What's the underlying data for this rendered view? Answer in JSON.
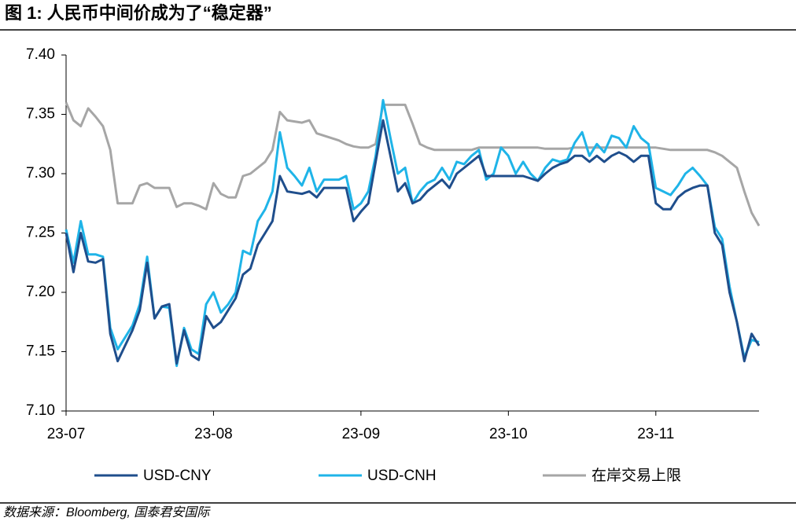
{
  "chart_data": {
    "type": "line",
    "title": "图 1:  人民币中间价成为了“稳定器”",
    "source": "数据来源：Bloomberg, 国泰君安国际",
    "categories": [
      "23-07",
      null,
      null,
      null,
      null,
      null,
      null,
      null,
      null,
      null,
      null,
      null,
      null,
      null,
      null,
      null,
      null,
      null,
      null,
      null,
      "23-08",
      null,
      null,
      null,
      null,
      null,
      null,
      null,
      null,
      null,
      null,
      null,
      null,
      null,
      null,
      null,
      null,
      null,
      null,
      null,
      "23-09",
      null,
      null,
      null,
      null,
      null,
      null,
      null,
      null,
      null,
      null,
      null,
      null,
      null,
      null,
      null,
      null,
      null,
      null,
      null,
      "23-10",
      null,
      null,
      null,
      null,
      null,
      null,
      null,
      null,
      null,
      null,
      null,
      null,
      null,
      null,
      null,
      null,
      null,
      null,
      null,
      "23-11",
      null,
      null,
      null,
      null,
      null,
      null,
      null,
      null,
      null,
      null,
      null,
      null,
      null,
      null
    ],
    "ylim": [
      7.1,
      7.4
    ],
    "yticks": [
      {
        "value": 7.1,
        "label": "7.10"
      },
      7.15,
      {
        "value": 7.2,
        "label": "7.20"
      },
      7.25,
      {
        "value": 7.3,
        "label": "7.30"
      },
      7.35,
      {
        "value": 7.4,
        "label": "7.40"
      }
    ],
    "grid": false,
    "legend": "bottom",
    "series": [
      {
        "name": "USD-CNY",
        "color": "#1f4e8c",
        "values": [
          7.25,
          7.217,
          7.25,
          7.226,
          7.225,
          7.228,
          7.165,
          7.142,
          7.155,
          7.168,
          7.185,
          7.225,
          7.178,
          7.188,
          7.19,
          7.14,
          7.168,
          7.147,
          7.143,
          7.18,
          7.17,
          7.175,
          7.185,
          7.195,
          7.215,
          7.22,
          7.24,
          7.25,
          7.26,
          7.298,
          7.285,
          7.284,
          7.283,
          7.285,
          7.28,
          7.288,
          7.288,
          7.288,
          7.288,
          7.26,
          7.268,
          7.275,
          7.31,
          7.345,
          7.315,
          7.285,
          7.292,
          7.275,
          7.278,
          7.285,
          7.29,
          7.295,
          7.288,
          7.3,
          7.305,
          7.31,
          7.315,
          7.298,
          7.298,
          7.298,
          7.298,
          7.298,
          7.298,
          7.296,
          7.294,
          7.3,
          7.305,
          7.308,
          7.31,
          7.315,
          7.315,
          7.31,
          7.315,
          7.31,
          7.315,
          7.318,
          7.315,
          7.31,
          7.315,
          7.315,
          7.275,
          7.27,
          7.27,
          7.28,
          7.285,
          7.288,
          7.29,
          7.29,
          7.25,
          7.24,
          7.2,
          7.175,
          7.142,
          7.165,
          7.155
        ]
      },
      {
        "name": "USD-CNH",
        "color": "#1fb4e8",
        "values": [
          7.253,
          7.225,
          7.26,
          7.232,
          7.232,
          7.23,
          7.17,
          7.152,
          7.162,
          7.172,
          7.19,
          7.23,
          7.178,
          7.188,
          7.187,
          7.138,
          7.17,
          7.152,
          7.148,
          7.19,
          7.2,
          7.183,
          7.19,
          7.2,
          7.235,
          7.232,
          7.26,
          7.27,
          7.285,
          7.335,
          7.305,
          7.298,
          7.29,
          7.305,
          7.285,
          7.295,
          7.295,
          7.295,
          7.298,
          7.27,
          7.275,
          7.285,
          7.315,
          7.362,
          7.33,
          7.3,
          7.305,
          7.275,
          7.285,
          7.292,
          7.295,
          7.305,
          7.295,
          7.31,
          7.308,
          7.315,
          7.32,
          7.295,
          7.3,
          7.322,
          7.315,
          7.3,
          7.31,
          7.3,
          7.294,
          7.305,
          7.312,
          7.31,
          7.312,
          7.326,
          7.335,
          7.315,
          7.325,
          7.318,
          7.332,
          7.33,
          7.322,
          7.34,
          7.33,
          7.325,
          7.288,
          7.285,
          7.282,
          7.29,
          7.3,
          7.305,
          7.298,
          7.29,
          7.255,
          7.245,
          7.205,
          7.175,
          7.145,
          7.16,
          7.158
        ]
      },
      {
        "name": "在岸交易上限",
        "color": "#a6a6a6",
        "values": [
          7.36,
          7.345,
          7.34,
          7.355,
          7.348,
          7.34,
          7.32,
          7.275,
          7.275,
          7.275,
          7.29,
          7.292,
          7.288,
          7.288,
          7.288,
          7.272,
          7.275,
          7.275,
          7.273,
          7.27,
          7.292,
          7.283,
          7.28,
          7.28,
          7.298,
          7.3,
          7.305,
          7.31,
          7.32,
          7.352,
          7.345,
          7.344,
          7.343,
          7.345,
          7.334,
          7.332,
          7.33,
          7.328,
          7.325,
          7.323,
          7.322,
          7.322,
          7.325,
          7.358,
          7.358,
          7.358,
          7.358,
          7.342,
          7.325,
          7.322,
          7.32,
          7.32,
          7.32,
          7.32,
          7.32,
          7.32,
          7.322,
          7.322,
          7.322,
          7.322,
          7.322,
          7.322,
          7.322,
          7.322,
          7.322,
          7.321,
          7.321,
          7.321,
          7.321,
          7.322,
          7.322,
          7.322,
          7.322,
          7.322,
          7.322,
          7.322,
          7.322,
          7.322,
          7.322,
          7.322,
          7.322,
          7.321,
          7.32,
          7.32,
          7.32,
          7.32,
          7.32,
          7.32,
          7.318,
          7.315,
          7.31,
          7.305,
          7.285,
          7.267,
          7.256
        ]
      }
    ]
  }
}
